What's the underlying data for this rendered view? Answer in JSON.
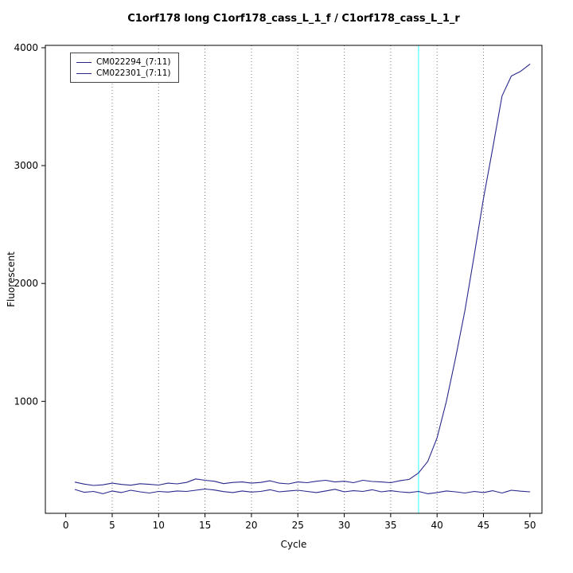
{
  "page": {
    "background": "#ffffff"
  },
  "chart_data": {
    "type": "line",
    "title": "C1orf178 long C1orf178_cass_L_1_f / C1orf178_cass_L_1_r",
    "xlabel": "Cycle",
    "ylabel": "Fluorescent",
    "xlim": [
      -2.2,
      51.3
    ],
    "ylim": [
      50,
      4020
    ],
    "xticks": [
      0,
      5,
      10,
      15,
      20,
      25,
      30,
      35,
      40,
      45,
      50
    ],
    "yticks": [
      1000,
      2000,
      3000,
      4000
    ],
    "grid_x": [
      5,
      10,
      15,
      20,
      25,
      30,
      35,
      40,
      45
    ],
    "grid_style": "dotted",
    "grid_color": "#777777",
    "box_color": "#000000",
    "threshold_line": {
      "x": 38,
      "color": "#66FFFF"
    },
    "legend_position": "top-left",
    "x": [
      1,
      2,
      3,
      4,
      5,
      6,
      7,
      8,
      9,
      10,
      11,
      12,
      13,
      14,
      15,
      16,
      17,
      18,
      19,
      20,
      21,
      22,
      23,
      24,
      25,
      26,
      27,
      28,
      29,
      30,
      31,
      32,
      33,
      34,
      35,
      36,
      37,
      38,
      39,
      40,
      41,
      42,
      43,
      44,
      45,
      46,
      47,
      48,
      49,
      50
    ],
    "series": [
      {
        "name": "CM022294_(7:11)",
        "color": "#28288C",
        "values": [
          315,
          298,
          286,
          292,
          306,
          295,
          288,
          301,
          296,
          290,
          306,
          300,
          312,
          342,
          330,
          322,
          302,
          312,
          316,
          306,
          312,
          326,
          306,
          300,
          316,
          310,
          322,
          330,
          316,
          322,
          310,
          330,
          320,
          316,
          310,
          326,
          338,
          392,
          490,
          690,
          1000,
          1370,
          1770,
          2240,
          2720,
          3150,
          3590,
          3760,
          3800,
          3860
        ]
      },
      {
        "name": "CM022301_(7:11)",
        "color": "#28288C",
        "values": [
          252,
          228,
          236,
          216,
          240,
          226,
          246,
          232,
          222,
          236,
          230,
          240,
          236,
          246,
          256,
          248,
          234,
          226,
          240,
          230,
          236,
          250,
          232,
          240,
          246,
          236,
          226,
          240,
          254,
          232,
          242,
          236,
          250,
          232,
          242,
          232,
          226,
          236,
          216,
          226,
          240,
          232,
          222,
          236,
          226,
          242,
          222,
          246,
          238,
          232
        ]
      }
    ]
  }
}
